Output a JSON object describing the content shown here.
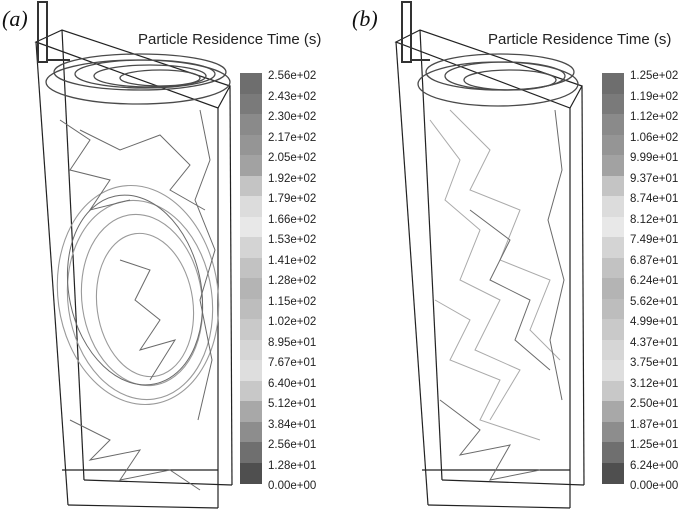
{
  "panels": [
    {
      "label": "(a)",
      "title": "Particle Residence Time (s)",
      "legend_ticks": [
        "2.56e+02",
        "2.43e+02",
        "2.30e+02",
        "2.17e+02",
        "2.05e+02",
        "1.92e+02",
        "1.79e+02",
        "1.66e+02",
        "1.53e+02",
        "1.41e+02",
        "1.28e+02",
        "1.15e+02",
        "1.02e+02",
        "8.95e+01",
        "7.67e+01",
        "6.40e+01",
        "5.12e+01",
        "3.84e+01",
        "2.56e+01",
        "1.28e+01",
        "0.00e+00"
      ]
    },
    {
      "label": "(b)",
      "title": "Particle Residence Time (s)",
      "legend_ticks": [
        "1.25e+02",
        "1.19e+02",
        "1.12e+02",
        "1.06e+02",
        "9.99e+01",
        "9.37e+01",
        "8.74e+01",
        "8.12e+01",
        "7.49e+01",
        "6.87e+01",
        "6.24e+01",
        "5.62e+01",
        "4.99e+01",
        "4.37e+01",
        "3.75e+01",
        "3.12e+01",
        "2.50e+01",
        "1.87e+01",
        "1.25e+01",
        "6.24e+00",
        "0.00e+00"
      ]
    }
  ],
  "legend_colors": [
    "#6e6e6e",
    "#7a7a7a",
    "#8a8a8a",
    "#959595",
    "#a2a2a2",
    "#c4c4c4",
    "#dcdcdc",
    "#e8e8e8",
    "#d4d4d4",
    "#c2c2c2",
    "#b4b4b4",
    "#bdbdbd",
    "#c9c9c9",
    "#d6d6d6",
    "#dedede",
    "#c8c8c8",
    "#a8a8a8",
    "#8d8d8d",
    "#6f6f6f",
    "#4f4f4f"
  ]
}
